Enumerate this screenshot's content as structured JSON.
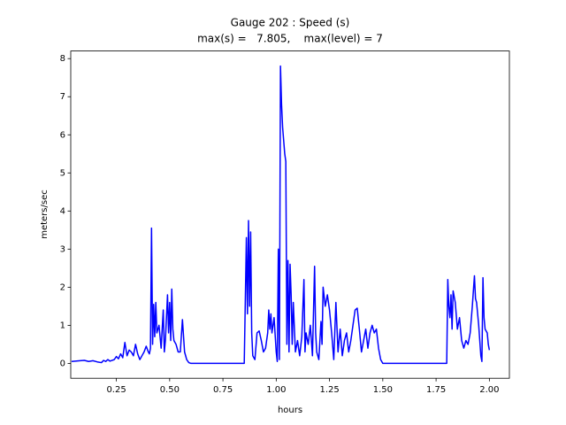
{
  "chart_data": {
    "type": "line",
    "title": "Gauge 202 : Speed (s)",
    "subtitle": "max(s) =   7.805,    max(level) = 7",
    "xlabel": "hours",
    "ylabel": "meters/sec",
    "color": "#0000ff",
    "x": [
      0.04,
      0.08,
      0.1,
      0.12,
      0.14,
      0.16,
      0.18,
      0.19,
      0.2,
      0.21,
      0.22,
      0.24,
      0.25,
      0.26,
      0.27,
      0.28,
      0.29,
      0.3,
      0.31,
      0.32,
      0.33,
      0.34,
      0.35,
      0.36,
      0.37,
      0.38,
      0.39,
      0.4,
      0.405,
      0.41,
      0.415,
      0.42,
      0.425,
      0.43,
      0.435,
      0.44,
      0.45,
      0.46,
      0.47,
      0.475,
      0.48,
      0.49,
      0.495,
      0.5,
      0.505,
      0.51,
      0.515,
      0.52,
      0.53,
      0.54,
      0.55,
      0.56,
      0.57,
      0.58,
      0.59,
      0.6,
      0.85,
      0.86,
      0.865,
      0.87,
      0.875,
      0.88,
      0.885,
      0.89,
      0.9,
      0.91,
      0.92,
      0.93,
      0.94,
      0.95,
      0.96,
      0.965,
      0.97,
      0.975,
      0.98,
      0.99,
      1.0,
      1.005,
      1.01,
      1.015,
      1.02,
      1.025,
      1.03,
      1.04,
      1.045,
      1.05,
      1.055,
      1.06,
      1.065,
      1.07,
      1.075,
      1.08,
      1.09,
      1.1,
      1.11,
      1.12,
      1.13,
      1.135,
      1.14,
      1.15,
      1.16,
      1.17,
      1.18,
      1.185,
      1.19,
      1.2,
      1.21,
      1.215,
      1.22,
      1.23,
      1.24,
      1.25,
      1.26,
      1.27,
      1.28,
      1.29,
      1.3,
      1.31,
      1.32,
      1.33,
      1.34,
      1.35,
      1.36,
      1.37,
      1.38,
      1.39,
      1.4,
      1.41,
      1.42,
      1.43,
      1.44,
      1.45,
      1.46,
      1.47,
      1.48,
      1.49,
      1.5,
      1.8,
      1.805,
      1.81,
      1.815,
      1.82,
      1.825,
      1.83,
      1.84,
      1.85,
      1.86,
      1.87,
      1.88,
      1.89,
      1.9,
      1.91,
      1.92,
      1.93,
      1.935,
      1.94,
      1.95,
      1.96,
      1.965,
      1.97,
      1.975,
      1.98,
      1.99,
      1.995,
      2.0
    ],
    "values": [
      0.05,
      0.07,
      0.08,
      0.05,
      0.07,
      0.04,
      0.02,
      0.08,
      0.05,
      0.1,
      0.06,
      0.1,
      0.18,
      0.12,
      0.25,
      0.15,
      0.55,
      0.2,
      0.35,
      0.3,
      0.2,
      0.5,
      0.25,
      0.1,
      0.2,
      0.3,
      0.45,
      0.3,
      0.25,
      0.4,
      3.55,
      0.5,
      1.55,
      0.7,
      1.6,
      0.8,
      1.0,
      0.4,
      1.4,
      0.3,
      0.6,
      1.8,
      0.8,
      1.6,
      0.6,
      1.95,
      0.9,
      0.6,
      0.5,
      0.3,
      0.3,
      1.15,
      0.3,
      0.1,
      0.02,
      0,
      0,
      3.3,
      1.3,
      3.75,
      1.5,
      3.45,
      0.8,
      0.2,
      0.1,
      0.8,
      0.85,
      0.6,
      0.3,
      0.4,
      0.8,
      1.4,
      0.9,
      1.3,
      0.8,
      1.2,
      0.3,
      0.05,
      3.0,
      0.1,
      7.805,
      6.8,
      6.2,
      5.5,
      5.3,
      0.5,
      2.7,
      0.3,
      2.6,
      1.8,
      0.5,
      1.6,
      0.3,
      0.6,
      0.2,
      0.7,
      2.2,
      0.3,
      0.8,
      0.5,
      1.0,
      0.2,
      2.55,
      0.8,
      0.3,
      0.1,
      1.1,
      0.5,
      2.0,
      1.5,
      1.8,
      1.4,
      0.8,
      0.1,
      1.6,
      0.3,
      0.9,
      0.2,
      0.6,
      0.8,
      0.3,
      0.6,
      1.0,
      1.4,
      1.45,
      0.9,
      0.3,
      0.6,
      0.9,
      0.4,
      0.8,
      1.0,
      0.8,
      0.9,
      0.4,
      0.1,
      0,
      0,
      2.2,
      1.5,
      1.2,
      1.8,
      0.9,
      1.9,
      1.6,
      0.9,
      1.2,
      0.6,
      0.4,
      0.6,
      0.5,
      0.8,
      1.5,
      2.3,
      1.7,
      1.6,
      1.0,
      0.2,
      0.05,
      2.25,
      1.2,
      0.9,
      0.8,
      0.5,
      0.35
    ],
    "xlim": [
      0.036,
      2.094
    ],
    "ylim": [
      -0.39,
      8.2
    ],
    "xticks": [
      0.25,
      {
        "value": 0.5,
        "label": "0.50"
      },
      0.75,
      {
        "value": 1,
        "label": "1.00"
      },
      1.25,
      {
        "value": 1.5,
        "label": "1.50"
      },
      1.75,
      {
        "value": 2,
        "label": "2.00"
      }
    ],
    "yticks": [
      0,
      1,
      2,
      3,
      4,
      5,
      6,
      7,
      8
    ]
  }
}
